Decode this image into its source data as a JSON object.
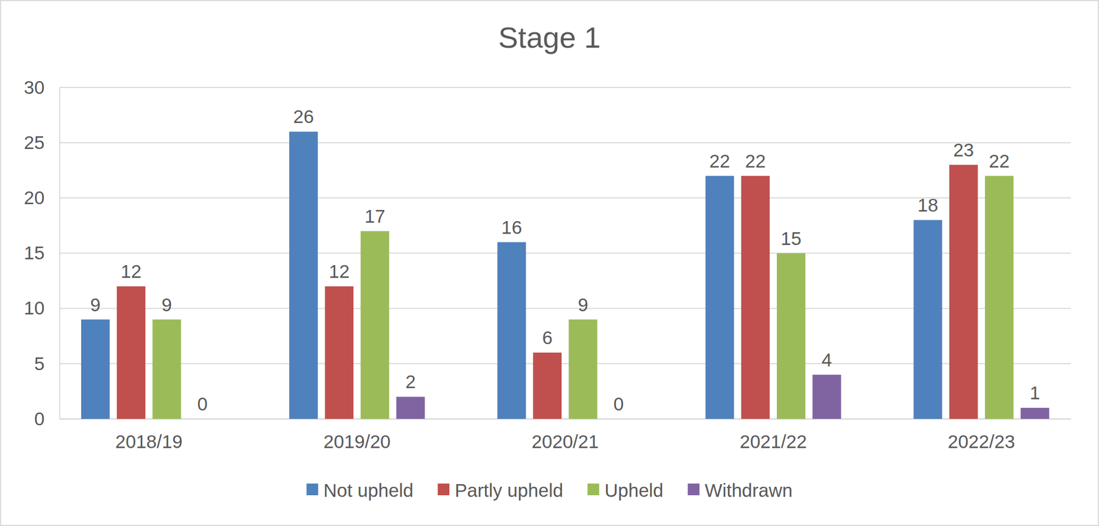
{
  "chart_data": {
    "type": "bar",
    "title": "Stage 1",
    "categories": [
      "2018/19",
      "2019/20",
      "2020/21",
      "2021/22",
      "2022/23"
    ],
    "series": [
      {
        "name": "Not upheld",
        "color": "#4f81bd",
        "values": [
          9,
          26,
          16,
          22,
          18
        ]
      },
      {
        "name": "Partly upheld",
        "color": "#c0504d",
        "values": [
          12,
          12,
          6,
          22,
          23
        ]
      },
      {
        "name": "Upheld",
        "color": "#9bbb59",
        "values": [
          9,
          17,
          9,
          15,
          22
        ]
      },
      {
        "name": "Withdrawn",
        "color": "#8064a2",
        "values": [
          0,
          2,
          0,
          4,
          1
        ]
      }
    ],
    "ylim": [
      0,
      30
    ],
    "yticks": [
      0,
      5,
      10,
      15,
      20,
      25,
      30
    ],
    "grid": true,
    "data_labels": true,
    "legend": "bottom"
  }
}
